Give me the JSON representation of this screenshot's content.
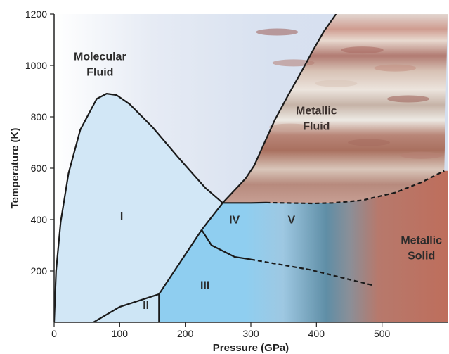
{
  "chart_data": {
    "type": "phase-diagram",
    "title": "",
    "xlabel": "Pressure (GPa)",
    "ylabel": "Temperature (K)",
    "xlim": [
      0,
      600
    ],
    "ylim": [
      0,
      1200
    ],
    "x_ticks": [
      0,
      100,
      200,
      300,
      400,
      500
    ],
    "y_ticks": [
      200,
      400,
      600,
      800,
      1000,
      1200
    ],
    "grid": false,
    "regions": [
      {
        "id": "molecular-fluid",
        "label": "Molecular Fluid",
        "lines": [
          "Molecular",
          "Fluid"
        ],
        "at": [
          70,
          1020
        ]
      },
      {
        "id": "metallic-fluid",
        "label": "Metallic Fluid",
        "lines": [
          "Metallic",
          "Fluid"
        ],
        "at": [
          400,
          810
        ]
      },
      {
        "id": "metallic-solid",
        "label": "Metallic Solid",
        "lines": [
          "Metallic",
          "Solid"
        ],
        "at": [
          560,
          305
        ]
      },
      {
        "id": "phase-I",
        "label": "I",
        "lines": [
          "I"
        ],
        "at": [
          103,
          400
        ]
      },
      {
        "id": "phase-II",
        "label": "II",
        "lines": [
          "II"
        ],
        "at": [
          140,
          52
        ]
      },
      {
        "id": "phase-III",
        "label": "III",
        "lines": [
          "III"
        ],
        "at": [
          230,
          130
        ]
      },
      {
        "id": "phase-IV",
        "label": "IV",
        "lines": [
          "IV"
        ],
        "at": [
          275,
          385
        ]
      },
      {
        "id": "phase-V",
        "label": "V",
        "lines": [
          "V"
        ],
        "at": [
          362,
          385
        ]
      }
    ],
    "boundaries": [
      {
        "id": "phase-I-outer-boundary",
        "style": "solid",
        "points": [
          [
            0,
            0
          ],
          [
            3,
            200
          ],
          [
            10,
            390
          ],
          [
            22,
            580
          ],
          [
            40,
            750
          ],
          [
            65,
            870
          ],
          [
            80,
            890
          ],
          [
            95,
            885
          ],
          [
            115,
            850
          ],
          [
            150,
            760
          ],
          [
            190,
            640
          ],
          [
            230,
            525
          ],
          [
            257,
            465
          ]
        ]
      },
      {
        "id": "molecular-metallic-boundary",
        "style": "solid",
        "points": [
          [
            257,
            465
          ],
          [
            292,
            560
          ],
          [
            305,
            610
          ],
          [
            320,
            695
          ],
          [
            337,
            790
          ],
          [
            356,
            880
          ],
          [
            378,
            980
          ],
          [
            395,
            1060
          ],
          [
            412,
            1135
          ],
          [
            430,
            1200
          ]
        ]
      },
      {
        "id": "I-IV-boundary",
        "style": "solid",
        "points": [
          [
            257,
            465
          ],
          [
            225,
            360
          ]
        ]
      },
      {
        "id": "I-III-boundary",
        "style": "solid",
        "points": [
          [
            225,
            360
          ],
          [
            160,
            110
          ]
        ]
      },
      {
        "id": "II-III-boundary",
        "style": "solid",
        "points": [
          [
            160,
            110
          ],
          [
            160,
            0
          ]
        ]
      },
      {
        "id": "II-top-boundary",
        "style": "solid",
        "points": [
          [
            60,
            0
          ],
          [
            100,
            60
          ],
          [
            160,
            110
          ]
        ]
      },
      {
        "id": "IV-III-boundary",
        "style": "solid",
        "points": [
          [
            225,
            360
          ],
          [
            240,
            300
          ],
          [
            275,
            255
          ],
          [
            300,
            245
          ]
        ]
      },
      {
        "id": "III-solid-boundary",
        "style": "dashed",
        "points": [
          [
            300,
            245
          ],
          [
            390,
            205
          ],
          [
            485,
            145
          ]
        ]
      },
      {
        "id": "IV-top-boundary",
        "style": "solid",
        "points": [
          [
            257,
            465
          ],
          [
            300,
            465
          ],
          [
            323,
            466
          ]
        ]
      },
      {
        "id": "metallic-fluid-lower-boundary",
        "style": "dashed",
        "points": [
          [
            323,
            466
          ],
          [
            370,
            464
          ],
          [
            395,
            463
          ],
          [
            425,
            465
          ],
          [
            470,
            475
          ],
          [
            520,
            505
          ],
          [
            560,
            545
          ],
          [
            595,
            590
          ]
        ]
      }
    ]
  }
}
